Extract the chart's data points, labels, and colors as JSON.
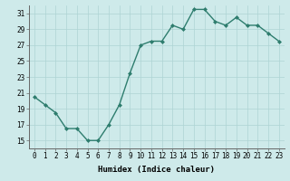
{
  "x": [
    0,
    1,
    2,
    3,
    4,
    5,
    6,
    7,
    8,
    9,
    10,
    11,
    12,
    13,
    14,
    15,
    16,
    17,
    18,
    19,
    20,
    21,
    22,
    23
  ],
  "y": [
    20.5,
    19.5,
    18.5,
    16.5,
    16.5,
    15.0,
    15.0,
    17.0,
    19.5,
    23.5,
    27.0,
    27.5,
    27.5,
    29.5,
    29.0,
    31.5,
    31.5,
    30.0,
    29.5,
    30.5,
    29.5,
    29.5,
    28.5,
    27.5
  ],
  "line_color": "#2e7d6e",
  "marker": "D",
  "marker_size": 2.0,
  "bg_color": "#ceeaea",
  "grid_color": "#aed4d4",
  "xlabel": "Humidex (Indice chaleur)",
  "ylim": [
    14,
    32
  ],
  "yticks": [
    15,
    17,
    19,
    21,
    23,
    25,
    27,
    29,
    31
  ],
  "xticks": [
    0,
    1,
    2,
    3,
    4,
    5,
    6,
    7,
    8,
    9,
    10,
    11,
    12,
    13,
    14,
    15,
    16,
    17,
    18,
    19,
    20,
    21,
    22,
    23
  ],
  "xlim": [
    -0.5,
    23.5
  ],
  "xlabel_fontsize": 6.5,
  "tick_fontsize": 5.5,
  "line_width": 1.0
}
